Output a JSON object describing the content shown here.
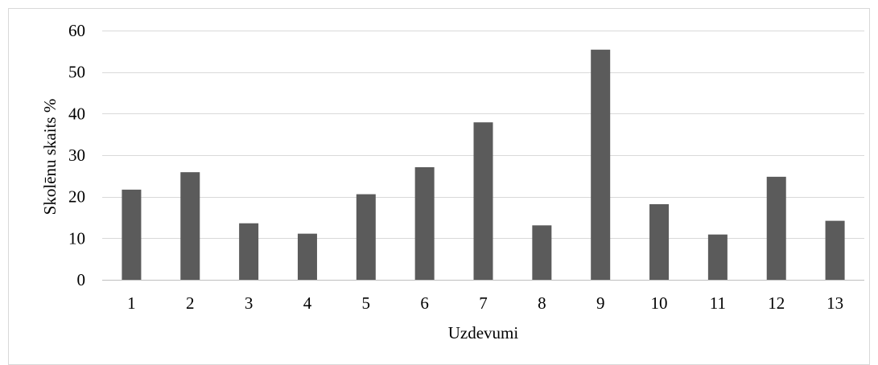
{
  "chart_data": {
    "type": "bar",
    "title": "",
    "xlabel": "Uzdevumi",
    "ylabel": "Skolēnu skaits %",
    "categories": [
      "1",
      "2",
      "3",
      "4",
      "5",
      "6",
      "7",
      "8",
      "9",
      "10",
      "11",
      "12",
      "13"
    ],
    "series": [
      {
        "values": [
          21.7,
          25.9,
          13.6,
          11.1,
          20.6,
          27.1,
          37.9,
          13.1,
          55.4,
          18.2,
          10.9,
          24.8,
          14.2
        ],
        "color": "#5b5b5b"
      }
    ],
    "ylim": [
      0,
      60
    ],
    "yticks": [
      0,
      10,
      20,
      30,
      40,
      50,
      60
    ],
    "grid": true,
    "legend": "none"
  }
}
